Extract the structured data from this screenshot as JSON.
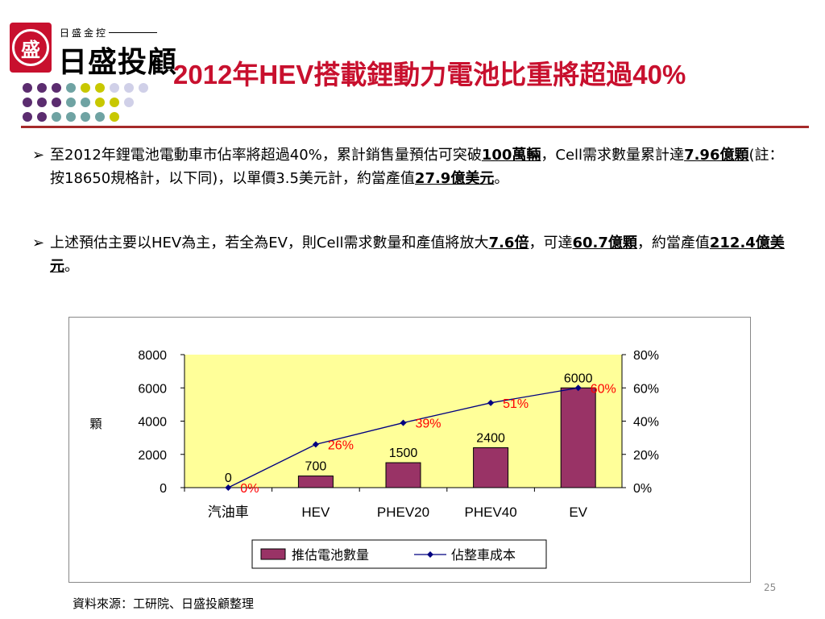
{
  "logo": {
    "seal": "盛",
    "small_text": "日盛金控",
    "big_text": "日盛投顧"
  },
  "title": "2012年HEV搭載鋰動力電池比重將超過40%",
  "paragraphs": [
    {
      "bullet": "➢",
      "parts": [
        {
          "t": "至2012年鋰電池電動車市佔率將超過40%，累計銷售量預估可突破"
        },
        {
          "t": "100萬輛",
          "b": true
        },
        {
          "t": "，Cell需求數量累計達"
        },
        {
          "t": "7.96億顆",
          "b": true
        },
        {
          "t": "(註：按18650規格計，以下同)，以單價3.5美元計，約當產值"
        },
        {
          "t": "27.9億美元",
          "b": true
        },
        {
          "t": "。"
        }
      ]
    },
    {
      "bullet": "➢",
      "parts": [
        {
          "t": "上述預估主要以HEV為主，若全為EV，則Cell需求數量和產值將放大"
        },
        {
          "t": "7.6倍",
          "b": true
        },
        {
          "t": "，可達"
        },
        {
          "t": "60.7億顆",
          "b": true
        },
        {
          "t": "，約當產值"
        },
        {
          "t": "212.4億美元",
          "b": true
        },
        {
          "t": "。"
        }
      ]
    }
  ],
  "chart_data": {
    "type": "bar",
    "categories": [
      "汽油車",
      "HEV",
      "PHEV20",
      "PHEV40",
      "EV"
    ],
    "series": [
      {
        "name": "推估電池數量",
        "type": "bar",
        "axis": "left",
        "values": [
          0,
          700,
          1500,
          2400,
          6000
        ],
        "color": "#993366"
      },
      {
        "name": "佔整車成本",
        "type": "line",
        "axis": "right",
        "values": [
          0,
          26,
          39,
          51,
          60
        ],
        "labels": [
          "0%",
          "26%",
          "39%",
          "51%",
          "60%"
        ],
        "color": "#000080",
        "label_color": "#ff0000"
      }
    ],
    "ylabel": "顆",
    "ylim": [
      0,
      8000
    ],
    "yticks": [
      "0",
      "2000",
      "4000",
      "6000",
      "8000"
    ],
    "y2lim": [
      0,
      80
    ],
    "y2ticks": [
      "0%",
      "20%",
      "40%",
      "60%",
      "80%"
    ],
    "plot_background": "#ffff99",
    "legend_position": "bottom"
  },
  "page_number": "25",
  "source": "資料來源：工研院、日盛投顧整理"
}
